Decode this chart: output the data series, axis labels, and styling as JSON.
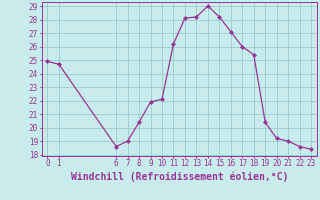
{
  "x": [
    0,
    1,
    6,
    7,
    8,
    9,
    10,
    11,
    12,
    13,
    14,
    15,
    16,
    17,
    18,
    19,
    20,
    21,
    22,
    23
  ],
  "y": [
    24.9,
    24.7,
    18.6,
    19.0,
    20.4,
    21.9,
    22.1,
    26.2,
    28.1,
    28.2,
    29.0,
    28.2,
    27.1,
    26.0,
    25.4,
    20.4,
    19.2,
    19.0,
    18.6,
    18.4
  ],
  "line_color": "#993399",
  "marker_color": "#993399",
  "bg_color": "#c8ecec",
  "grid_color": "#99cccc",
  "xlabel": "Windchill (Refroidissement éolien,°C)",
  "xlim_min": -0.5,
  "xlim_max": 23.5,
  "ylim_min": 17.9,
  "ylim_max": 29.3,
  "xticks": [
    0,
    1,
    6,
    7,
    8,
    9,
    10,
    11,
    12,
    13,
    14,
    15,
    16,
    17,
    18,
    19,
    20,
    21,
    22,
    23
  ],
  "yticks": [
    18,
    19,
    20,
    21,
    22,
    23,
    24,
    25,
    26,
    27,
    28,
    29
  ],
  "tick_fontsize": 5.5,
  "xlabel_fontsize": 7.0
}
